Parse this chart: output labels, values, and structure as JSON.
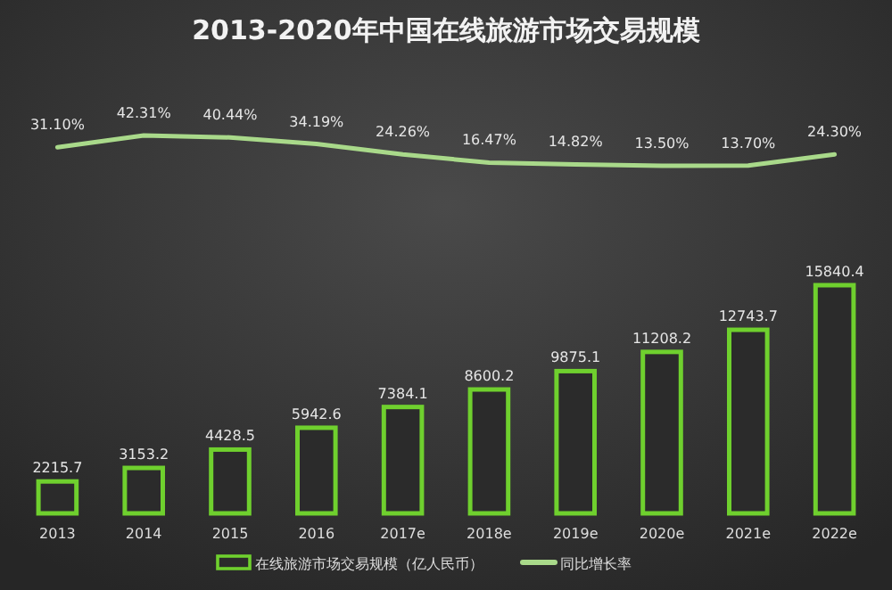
{
  "chart_data": [
    {
      "type": "line",
      "title": "2013-2020年中国在线旅游市场交易规模",
      "categories": [
        null,
        null,
        null,
        null,
        null,
        null,
        null,
        null,
        null,
        null
      ],
      "series": [
        {
          "name": "同比增长率",
          "color": "#a9d98a",
          "values": [
            31.1,
            42.31,
            40.44,
            34.19,
            24.26,
            16.47,
            14.82,
            13.5,
            13.7,
            24.3
          ],
          "value_labels": [
            "31.10%",
            "42.31%",
            "40.44%",
            "34.19%",
            "24.26%",
            "16.47%",
            "14.82%",
            "13.50%",
            "13.70%",
            "24.30%"
          ]
        }
      ],
      "legend": "bottom"
    },
    {
      "type": "bar",
      "categories": [
        "2013",
        "2014",
        "2015",
        "2016",
        "2017e",
        "2018e",
        "2019e",
        "2020e",
        "2021e",
        "2022e"
      ],
      "series": [
        {
          "name": "在线旅游市场交易规模（亿人民币）",
          "color": "#6fd02e",
          "values": [
            2215.7,
            3153.2,
            4428.5,
            5942.6,
            7384.1,
            8600.2,
            9875.1,
            11208.2,
            12743.7,
            15840.4
          ]
        }
      ],
      "data_labels": true,
      "legend": "bottom"
    }
  ]
}
